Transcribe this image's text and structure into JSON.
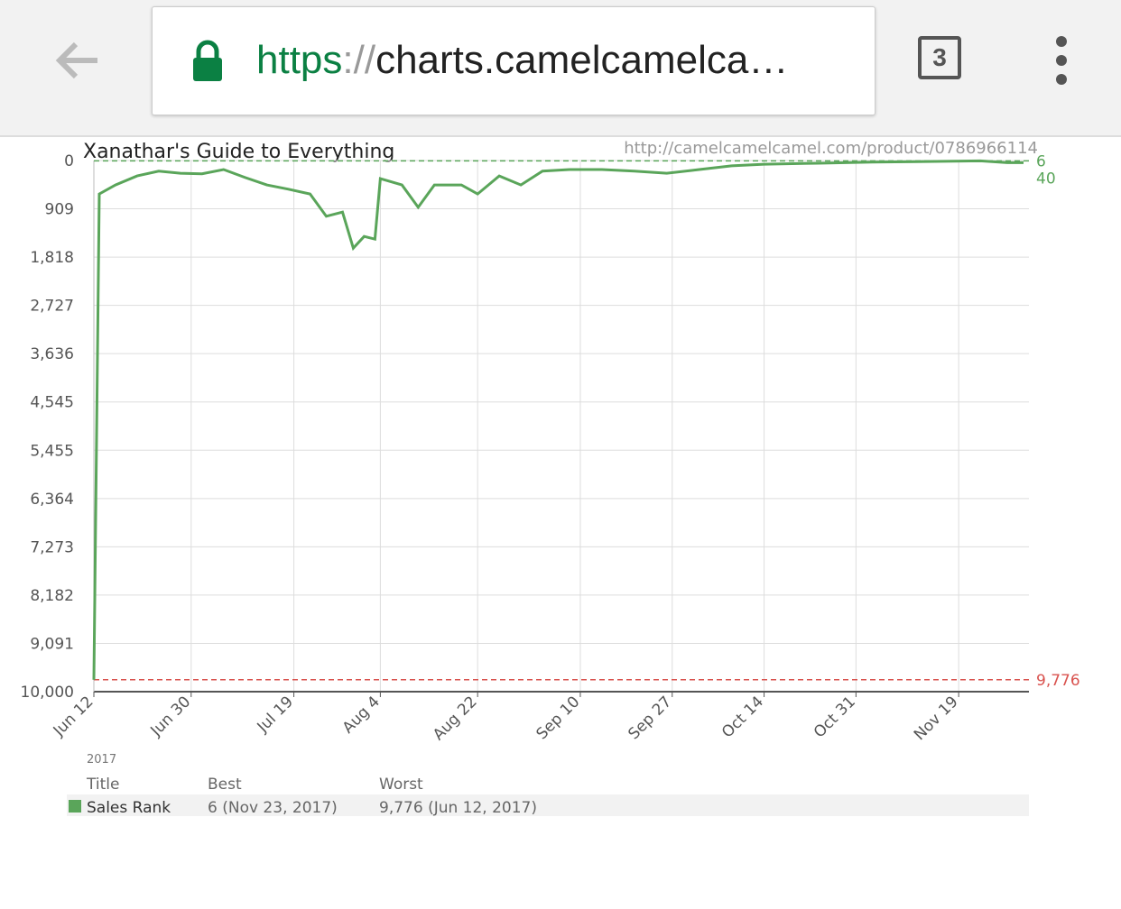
{
  "browser": {
    "url_scheme": "https",
    "url_separator": "://",
    "url_rest": "charts.camelcamelca…",
    "tab_count": 3
  },
  "chart_data": {
    "type": "line",
    "title": "Xanathar's Guide to Everything",
    "source_url": "http://camelcamelcamel.com/product/0786966114",
    "year_label": "2017",
    "x": [
      "2017-06-12",
      "2017-06-13",
      "2017-06-16",
      "2017-06-20",
      "2017-06-24",
      "2017-06-28",
      "2017-07-02",
      "2017-07-06",
      "2017-07-10",
      "2017-07-14",
      "2017-07-18",
      "2017-07-22",
      "2017-07-25",
      "2017-07-28",
      "2017-07-30",
      "2017-08-01",
      "2017-08-03",
      "2017-08-04",
      "2017-08-08",
      "2017-08-11",
      "2017-08-14",
      "2017-08-19",
      "2017-08-22",
      "2017-08-26",
      "2017-08-30",
      "2017-09-03",
      "2017-09-08",
      "2017-09-14",
      "2017-09-20",
      "2017-09-26",
      "2017-10-02",
      "2017-10-08",
      "2017-10-14",
      "2017-10-24",
      "2017-11-03",
      "2017-11-13",
      "2017-11-23",
      "2017-11-28",
      "2017-12-01"
    ],
    "series": [
      {
        "name": "Sales Rank",
        "color": "#5aa55a",
        "values": [
          9776,
          630,
          460,
          290,
          200,
          240,
          250,
          170,
          320,
          460,
          540,
          630,
          1050,
          970,
          1650,
          1430,
          1480,
          340,
          460,
          880,
          460,
          460,
          630,
          290,
          460,
          200,
          170,
          170,
          200,
          240,
          170,
          100,
          70,
          50,
          30,
          20,
          6,
          40,
          40
        ]
      }
    ],
    "xlim": [
      "2017-06-12",
      "2017-12-02"
    ],
    "xticks": [
      {
        "value": "2017-06-12",
        "label": "Jun 12"
      },
      {
        "value": "2017-06-30",
        "label": "Jun 30"
      },
      {
        "value": "2017-07-19",
        "label": "Jul 19"
      },
      {
        "value": "2017-08-04",
        "label": "Aug 4"
      },
      {
        "value": "2017-08-22",
        "label": "Aug 22"
      },
      {
        "value": "2017-09-10",
        "label": "Sep 10"
      },
      {
        "value": "2017-09-27",
        "label": "Sep 27"
      },
      {
        "value": "2017-10-14",
        "label": "Oct 14"
      },
      {
        "value": "2017-10-31",
        "label": "Oct 31"
      },
      {
        "value": "2017-11-19",
        "label": "Nov 19"
      }
    ],
    "ylim": [
      0,
      10000
    ],
    "y_inverted": true,
    "yticks": [
      0,
      909,
      {
        "value": 1818,
        "label": "1,818"
      },
      {
        "value": 2727,
        "label": "2,727"
      },
      {
        "value": 3636,
        "label": "3,636"
      },
      {
        "value": 4545,
        "label": "4,545"
      },
      {
        "value": 5455,
        "label": "5,455"
      },
      {
        "value": 6364,
        "label": "6,364"
      },
      {
        "value": 7273,
        "label": "7,273"
      },
      {
        "value": 8182,
        "label": "8,182"
      },
      {
        "value": 9091,
        "label": "9,091"
      },
      {
        "value": 10000,
        "label": "10,000"
      }
    ],
    "grid": true,
    "reference_lines": [
      {
        "value": 6,
        "color": "#5aa55a"
      },
      {
        "value": 9776,
        "label": "9,776",
        "color": "#d9534f"
      }
    ],
    "summary": {
      "headers": [
        "Title",
        "Best",
        "Worst"
      ],
      "best": "6 (Nov 23, 2017)",
      "worst": "9,776 (Jun 12, 2017)"
    }
  }
}
